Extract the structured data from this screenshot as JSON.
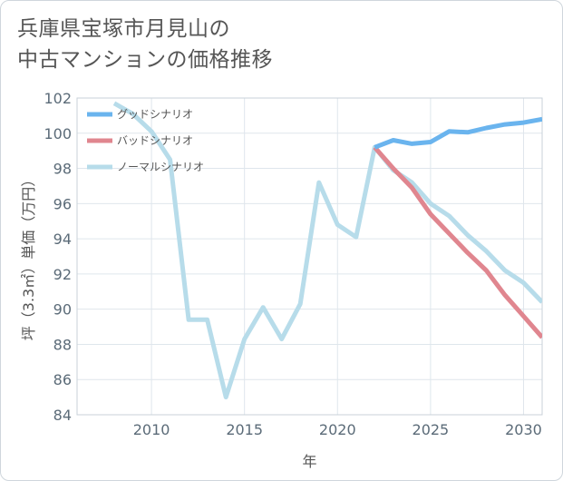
{
  "title_lines": [
    "兵庫県宝塚市月見山の",
    "中古マンションの価格推移"
  ],
  "chart_data": {
    "type": "line",
    "xlabel": "年",
    "ylabel": "坪（3.3㎡）単価（万円）",
    "xlim": [
      2006,
      2031
    ],
    "ylim": [
      84,
      102
    ],
    "xticks": [
      2010,
      2015,
      2020,
      2025,
      2030
    ],
    "yticks": [
      84,
      86,
      88,
      90,
      92,
      94,
      96,
      98,
      100,
      102
    ],
    "grid": true,
    "legend_placement": "top-left",
    "series": [
      {
        "name": "グッドシナリオ",
        "color": "#6ab4ee",
        "x": [
          2022,
          2023,
          2024,
          2025,
          2026,
          2027,
          2028,
          2029,
          2030,
          2031
        ],
        "y": [
          99.2,
          99.6,
          99.4,
          99.5,
          100.1,
          100.05,
          100.3,
          100.5,
          100.6,
          100.8
        ]
      },
      {
        "name": "バッドシナリオ",
        "color": "#e0868f",
        "x": [
          2022,
          2023,
          2024,
          2025,
          2026,
          2027,
          2028,
          2029,
          2030,
          2031
        ],
        "y": [
          99.2,
          98.0,
          96.9,
          95.4,
          94.3,
          93.2,
          92.2,
          90.8,
          89.6,
          88.4
        ]
      },
      {
        "name": "ノーマルシナリオ",
        "color": "#b7dcea",
        "x": [
          2008,
          2009,
          2010,
          2011,
          2012,
          2013,
          2014,
          2015,
          2016,
          2017,
          2018,
          2019,
          2020,
          2021,
          2022,
          2023,
          2024,
          2025,
          2026,
          2027,
          2028,
          2029,
          2030,
          2031
        ],
        "y": [
          101.7,
          101.1,
          100.1,
          98.5,
          89.4,
          89.4,
          85.0,
          88.3,
          90.1,
          88.3,
          90.3,
          97.2,
          94.8,
          94.1,
          99.2,
          97.9,
          97.2,
          96.0,
          95.3,
          94.2,
          93.3,
          92.2,
          91.5,
          90.4
        ]
      }
    ]
  }
}
